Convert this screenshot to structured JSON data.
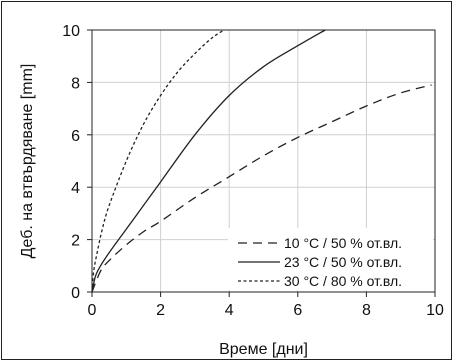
{
  "chart_data": {
    "type": "line",
    "xlabel": "Време [дни]",
    "ylabel": "Деб. на втвърдяване [mm]",
    "xlim": [
      0,
      10
    ],
    "ylim": [
      0,
      10
    ],
    "xticks": [
      0,
      2,
      4,
      6,
      8,
      10
    ],
    "yticks": [
      0,
      2,
      4,
      6,
      8,
      10
    ],
    "grid": true,
    "legend_position": "bottom-right",
    "series": [
      {
        "name": "10 °C / 50 % от.вл.",
        "dash": "long-dash",
        "x": [
          0,
          0.25,
          0.5,
          1,
          1.5,
          2,
          3,
          4,
          5,
          6,
          7,
          8,
          9,
          9.9
        ],
        "y": [
          0,
          0.8,
          1.2,
          1.8,
          2.3,
          2.7,
          3.6,
          4.4,
          5.2,
          5.9,
          6.5,
          7.1,
          7.6,
          7.9
        ]
      },
      {
        "name": "23 °C / 50 % от.вл.",
        "dash": "solid",
        "x": [
          0,
          0.1,
          0.25,
          0.5,
          1,
          1.5,
          2,
          3,
          4,
          5,
          6,
          6.8
        ],
        "y": [
          0,
          0.6,
          1.0,
          1.5,
          2.4,
          3.3,
          4.2,
          6.0,
          7.5,
          8.6,
          9.4,
          10.0
        ]
      },
      {
        "name": "30 °C / 80 % от.вл.",
        "dash": "short-dash",
        "x": [
          0,
          0.05,
          0.15,
          0.3,
          0.5,
          1,
          1.5,
          2,
          2.5,
          3,
          3.5,
          3.85
        ],
        "y": [
          0,
          0.8,
          1.5,
          2.4,
          3.3,
          5.0,
          6.4,
          7.5,
          8.4,
          9.1,
          9.7,
          10.0
        ]
      }
    ]
  },
  "colors": {
    "line": "#222222",
    "grid": "#d0d0d0",
    "axis": "#222222"
  }
}
